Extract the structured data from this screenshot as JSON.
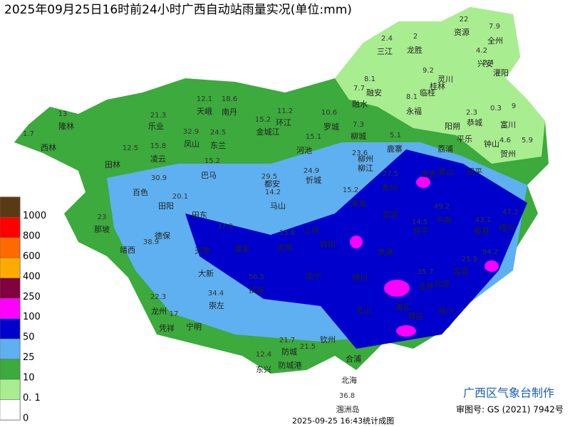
{
  "title": "2025年09月25日16时前24小时广西自动站雨量实况(单位:mm)",
  "legend": [
    {
      "label": "1000",
      "color": "#5a3a14"
    },
    {
      "label": "800",
      "color": "#ff0000"
    },
    {
      "label": "600",
      "color": "#ff6a00"
    },
    {
      "label": "400",
      "color": "#ffaa00"
    },
    {
      "label": "250",
      "color": "#800040"
    },
    {
      "label": "100",
      "color": "#ff00ff"
    },
    {
      "label": "50",
      "color": "#0000cc"
    },
    {
      "label": "25",
      "color": "#5fb0f0"
    },
    {
      "label": "10",
      "color": "#3caa3c"
    },
    {
      "label": "0. 1",
      "color": "#a8ee90"
    },
    {
      "label": "0",
      "color": "#ffffff"
    }
  ],
  "cities": [
    "资源",
    "全州",
    "三江",
    "龙胜",
    "兴安",
    "灵川",
    "桂林",
    "临桂",
    "灌阳",
    "融安",
    "融水",
    "永福",
    "恭城",
    "富川",
    "阳朔",
    "平乐",
    "钟山",
    "贺州",
    "隆林",
    "西林",
    "乐业",
    "天峨",
    "南丹",
    "环江",
    "罗城",
    "金城江",
    "凤山",
    "东兰",
    "河池",
    "柳城",
    "鹿寨",
    "荔浦",
    "田林",
    "凌云",
    "巴马",
    "都安",
    "忻城",
    "柳州",
    "柳江",
    "象州",
    "金秀",
    "蒙山",
    "昭平",
    "百色",
    "田阳",
    "马山",
    "来宾",
    "武宣",
    "平南",
    "藤县",
    "梧州",
    "那坡",
    "德保",
    "田东",
    "上林",
    "宾阳",
    "桂平",
    "靖西",
    "天等",
    "隆安",
    "武鸣",
    "贵港",
    "大新",
    "南宁",
    "横州",
    "容县",
    "北流",
    "玉林",
    "扶绥",
    "崇左",
    "龙州",
    "凭祥",
    "宁明",
    "灵山",
    "浦北",
    "陆川",
    "博白",
    "钦州",
    "防城",
    "合浦",
    "东兴",
    "防城港",
    "北海",
    "涠洲岛"
  ],
  "station_values": [
    22,
    7.9,
    2.4,
    2,
    4.2,
    2.4,
    9.2,
    8.1,
    7.7,
    8.1,
    12.1,
    18.6,
    21.3,
    13,
    1.7,
    32.9,
    24.5,
    15.2,
    11.2,
    10.6,
    12.5,
    15.8,
    15.2,
    15.1,
    7.3,
    23.6,
    5.1,
    2.3,
    0.3,
    9,
    4.6,
    5.9,
    30.9,
    29.5,
    24.9,
    15.2,
    27.5,
    20.1,
    14.2,
    49.2,
    23,
    37.9,
    15.8,
    43.1,
    47.3,
    38.9,
    14.5,
    25.9,
    94.2,
    35.7,
    56.5,
    22.3,
    34.4,
    17,
    21.7,
    21.5,
    12.4,
    36.8
  ],
  "footer": {
    "maker": "广西区气象台制作",
    "approval": "审图号: GS (2021) 7942号",
    "timestamp": "2025-09-25 16:43统计成图"
  }
}
